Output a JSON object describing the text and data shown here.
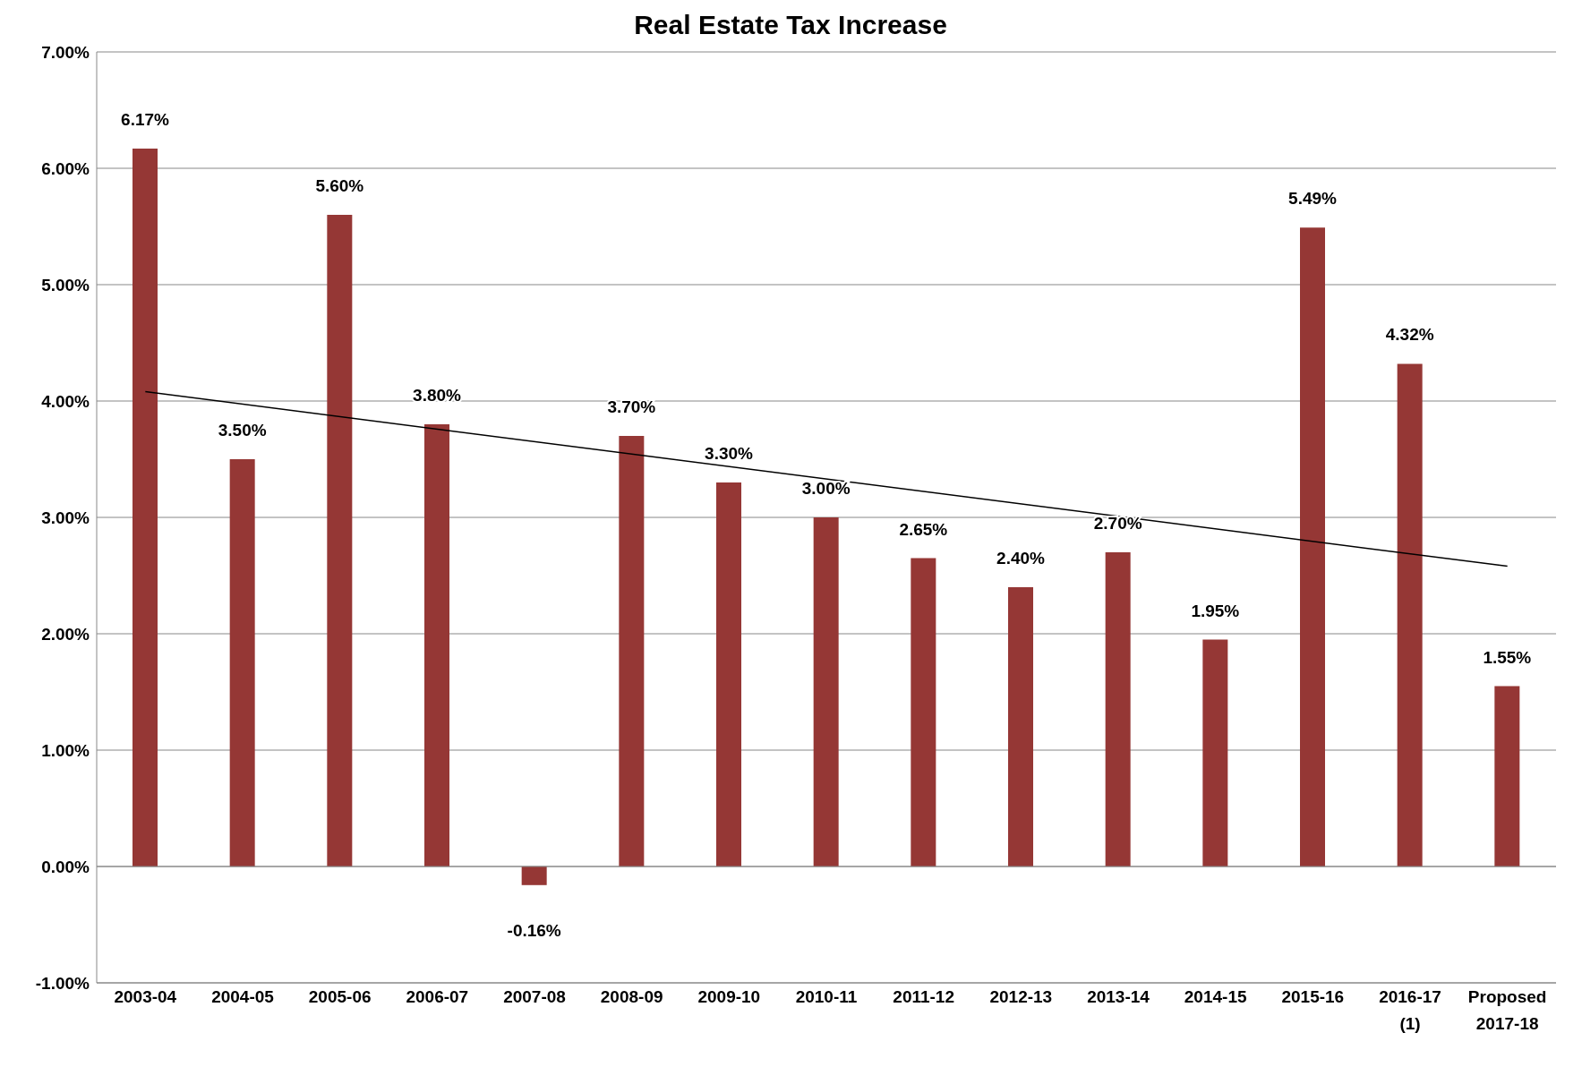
{
  "chart_data": {
    "type": "bar",
    "title": "Real Estate Tax Increase",
    "categories": [
      "2003-04",
      "2004-05",
      "2005-06",
      "2006-07",
      "2007-08",
      "2008-09",
      "2009-10",
      "2010-11",
      "2011-12",
      "2012-13",
      "2013-14",
      "2014-15",
      "2015-16",
      "2016-17\n(1)",
      "Proposed\n2017-18"
    ],
    "series": [
      {
        "color": "#953735",
        "values": [
          6.17,
          3.5,
          5.6,
          3.8,
          -0.16,
          3.7,
          3.3,
          3.0,
          2.65,
          2.4,
          2.7,
          1.95,
          5.49,
          4.32,
          1.55
        ],
        "value_labels": [
          "6.17%",
          "3.50%",
          "5.60%",
          "3.80%",
          "-0.16%",
          "3.70%",
          "3.30%",
          "3.00%",
          "2.65%",
          "2.40%",
          "2.70%",
          "1.95%",
          "5.49%",
          "4.32%",
          "1.55%"
        ]
      },
      {
        "type": "line",
        "color": "#000000",
        "values": [
          4.08,
          null,
          null,
          null,
          null,
          null,
          null,
          null,
          null,
          null,
          null,
          null,
          null,
          null,
          2.58
        ]
      }
    ],
    "ylim": [
      -1,
      7
    ],
    "yticks": [
      {
        "value": -1,
        "label": "-1.00%"
      },
      {
        "value": 0,
        "label": "0.00%"
      },
      {
        "value": 1,
        "label": "1.00%"
      },
      {
        "value": 2,
        "label": "2.00%"
      },
      {
        "value": 3,
        "label": "3.00%"
      },
      {
        "value": 4,
        "label": "4.00%"
      },
      {
        "value": 5,
        "label": "5.00%"
      },
      {
        "value": 6,
        "label": "6.00%"
      },
      {
        "value": 7,
        "label": "7.00%"
      }
    ],
    "grid": "y",
    "marker": "none",
    "line_style": "solid"
  }
}
